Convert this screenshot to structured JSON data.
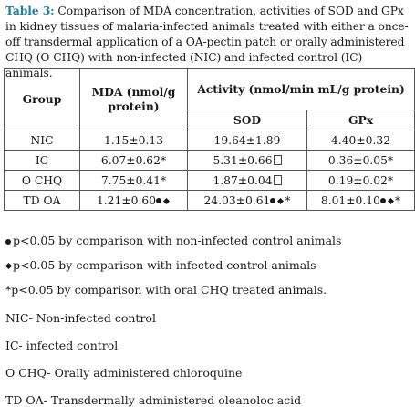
{
  "caption": {
    "label": "Table 3:",
    "text": " Comparison of MDA concentration, activities of SOD and GPx in kidney tissues of malaria-infected animals treated with either a once-off transdermal application of a OA-pectin patch or orally administered CHQ (O CHQ) with non-infected (NIC) and infected control (IC) animals."
  },
  "table": {
    "header": {
      "group": "Group",
      "mda": "MDA (nmol/g protein)",
      "activity": "Activity (nmol/min mL/g protein)",
      "sod": "SOD",
      "gpx": "GPx"
    },
    "rows": [
      {
        "group": "NIC",
        "mda": "1.15±0.13",
        "sod": "19.64±1.89",
        "gpx": "4.40±0.32"
      },
      {
        "group": "IC",
        "mda": "6.07±0.62*",
        "sod": "5.31±0.66",
        "gpx": "0.36±0.05*"
      },
      {
        "group": "O CHQ",
        "mda": "7.75±0.41*",
        "sod": "1.87±0.04",
        "gpx": "0.19±0.02*"
      },
      {
        "group": "TD OA",
        "mda": "1.21±0.60",
        "sod": "24.03±0.61",
        "sod_suffix": "*",
        "gpx": "8.01±0.10",
        "gpx_suffix": "*"
      }
    ]
  },
  "notes": [
    "p<0.05 by comparison with non-infected control animals",
    "p<0.05 by comparison with infected control animals",
    "*p<0.05 by comparison with oral CHQ treated animals.",
    "NIC- Non-infected control",
    "IC- infected control",
    "O CHQ- Orally administered chloroquine",
    "TD OA- Transdermally administered oleanoloc acid"
  ]
}
